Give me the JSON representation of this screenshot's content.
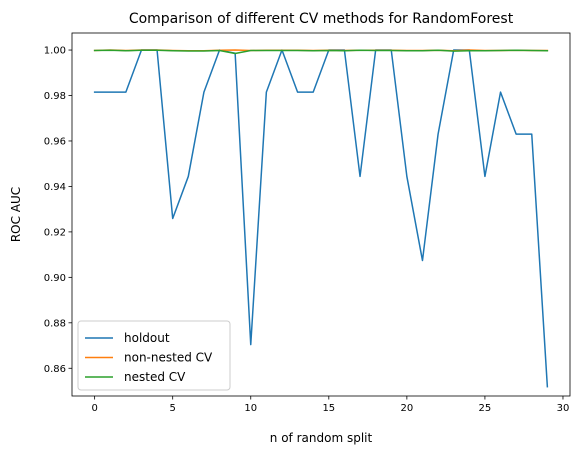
{
  "chart_data": {
    "type": "line",
    "title": "Comparison of different CV methods for RandomForest",
    "xlabel": "n of random split",
    "ylabel": "ROC AUC",
    "xlim": [
      -1.45,
      30.45
    ],
    "ylim": [
      0.8478,
      1.0075
    ],
    "xticks": [
      0,
      5,
      10,
      15,
      20,
      25,
      30
    ],
    "yticks": [
      0.86,
      0.88,
      0.9,
      0.92,
      0.94,
      0.96,
      0.98,
      1.0
    ],
    "ytick_labels": [
      "0.86",
      "0.88",
      "0.90",
      "0.92",
      "0.94",
      "0.96",
      "0.98",
      "1.00"
    ],
    "legend_position": "lower left",
    "x": [
      0,
      1,
      2,
      3,
      4,
      5,
      6,
      7,
      8,
      9,
      10,
      11,
      12,
      13,
      14,
      15,
      16,
      17,
      18,
      19,
      20,
      21,
      22,
      23,
      24,
      25,
      26,
      27,
      28,
      29
    ],
    "series": [
      {
        "name": "holdout",
        "color": "#1f77b4",
        "values": [
          0.9815,
          0.9815,
          0.9815,
          1.0,
          1.0,
          0.9259,
          0.9444,
          0.9815,
          1.0,
          0.9986,
          0.8704,
          0.9815,
          1.0,
          0.9815,
          0.9815,
          1.0,
          1.0,
          0.9444,
          1.0,
          1.0,
          0.9444,
          0.9074,
          0.963,
          1.0,
          1.0,
          0.9444,
          0.9815,
          0.963,
          0.963,
          0.8519
        ]
      },
      {
        "name": "non-nested CV",
        "color": "#ff7f0e",
        "values": [
          0.9998,
          1.0,
          0.9998,
          1.0,
          1.0,
          0.9998,
          0.9997,
          0.9997,
          0.9999,
          1.0,
          0.9998,
          0.9999,
          0.9999,
          0.9999,
          0.9998,
          0.9999,
          0.9998,
          0.9999,
          0.9999,
          0.9999,
          0.9998,
          0.9998,
          0.9999,
          0.9997,
          1.0,
          0.9998,
          0.9998,
          0.9999,
          0.9998,
          0.9998
        ]
      },
      {
        "name": "nested CV",
        "color": "#2ca02c",
        "values": [
          0.9998,
          0.9999,
          0.9997,
          0.9999,
          0.9999,
          0.9997,
          0.9996,
          0.9996,
          0.9998,
          0.9985,
          0.9998,
          0.9998,
          0.9998,
          0.9998,
          0.9997,
          0.9998,
          0.9997,
          0.9999,
          0.9998,
          0.9998,
          0.9997,
          0.9997,
          0.9999,
          0.9995,
          0.9997,
          0.9997,
          0.9998,
          0.9999,
          0.9998,
          0.9997
        ]
      }
    ]
  }
}
